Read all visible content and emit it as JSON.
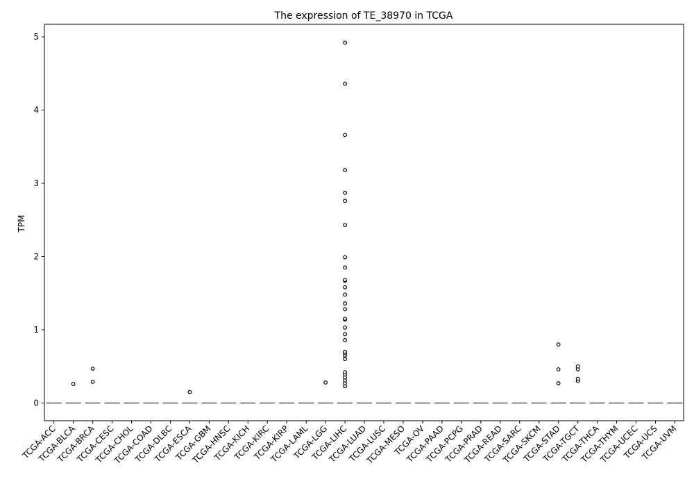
{
  "chart_data": {
    "type": "box",
    "title": "The expression of TE_38970 in TCGA",
    "xlabel": "",
    "ylabel": "TPM",
    "ylim": [
      -0.25,
      5.18
    ],
    "yticks": [
      0,
      1,
      2,
      3,
      4,
      5
    ],
    "categories": [
      "TCGA-ACC",
      "TCGA-BLCA",
      "TCGA-BRCA",
      "TCGA-CESC",
      "TCGA-CHOL",
      "TCGA-COAD",
      "TCGA-DLBC",
      "TCGA-ESCA",
      "TCGA-GBM",
      "TCGA-HNSC",
      "TCGA-KICH",
      "TCGA-KIRC",
      "TCGA-KIRP",
      "TCGA-LAML",
      "TCGA-LGG",
      "TCGA-LIHC",
      "TCGA-LUAD",
      "TCGA-LUSC",
      "TCGA-MESO",
      "TCGA-OV",
      "TCGA-PAAD",
      "TCGA-PCPG",
      "TCGA-PRAD",
      "TCGA-READ",
      "TCGA-SARC",
      "TCGA-SKCM",
      "TCGA-STAD",
      "TCGA-TGCT",
      "TCGA-THCA",
      "TCGA-THYM",
      "TCGA-UCEC",
      "TCGA-UCS",
      "TCGA-UVM"
    ],
    "median": [
      0,
      0,
      0,
      0,
      0,
      0,
      0,
      0,
      0,
      0,
      0,
      0,
      0,
      0,
      0,
      0,
      0,
      0,
      0,
      0,
      0,
      0,
      0,
      0,
      0,
      0,
      0,
      0,
      0,
      0,
      0,
      0,
      0
    ],
    "outliers": [
      [],
      [
        0.26
      ],
      [
        0.29,
        0.47
      ],
      [],
      [],
      [],
      [],
      [
        0.15
      ],
      [],
      [],
      [],
      [],
      [],
      [],
      [
        0.28
      ],
      [
        0.23,
        0.27,
        0.31,
        0.35,
        0.39,
        0.42,
        0.6,
        0.65,
        0.68,
        0.7,
        0.86,
        0.94,
        1.03,
        1.14,
        1.15,
        1.28,
        1.36,
        1.48,
        1.58,
        1.67,
        1.68,
        1.85,
        1.99,
        2.43,
        2.76,
        2.87,
        3.18,
        3.66,
        4.36,
        4.92
      ],
      [],
      [],
      [],
      [],
      [],
      [],
      [],
      [],
      [],
      [],
      [
        0.27,
        0.46,
        0.8
      ],
      [
        0.3,
        0.33,
        0.46,
        0.5
      ],
      [],
      [],
      [],
      [],
      []
    ],
    "grid": false,
    "colors": {
      "median_line": "#555555",
      "marker_edge": "#000000",
      "axes": "#000000"
    }
  }
}
